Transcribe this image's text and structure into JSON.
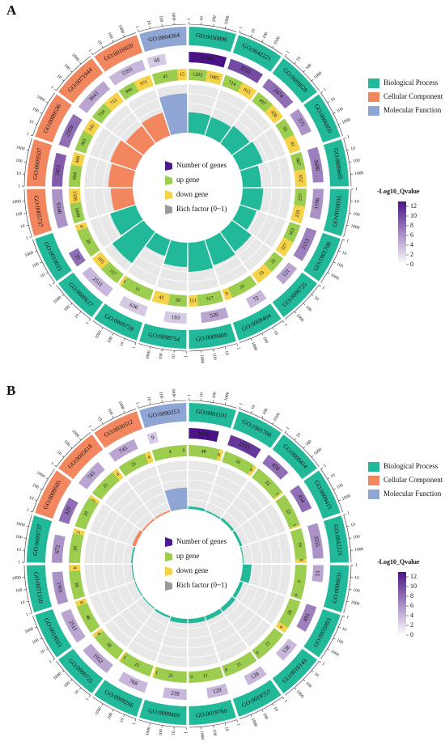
{
  "chart_data": [
    {
      "type": "circos",
      "label": "A",
      "terms": [
        "GO:0050896",
        "GO:0042221",
        "GO:0009628",
        "GO:0006950",
        "GO:0009605",
        "GO:0010035",
        "GO:1901700",
        "GO:0006725",
        "GO:0009404",
        "GO:0009409",
        "GO:0098754",
        "GO:0009759",
        "GO:0009617",
        "GO:0010033",
        "GO:0005737",
        "GO:0009507",
        "GO:0009536",
        "GO:0071944",
        "GO:0016020",
        "GO:0004364"
      ],
      "term_category": [
        "Biological Process",
        "Biological Process",
        "Biological Process",
        "Biological Process",
        "Biological Process",
        "Biological Process",
        "Biological Process",
        "Biological Process",
        "Biological Process",
        "Biological Process",
        "Biological Process",
        "Biological Process",
        "Biological Process",
        "Biological Process",
        "Cellular Component",
        "Cellular Component",
        "Cellular Component",
        "Cellular Component",
        "Cellular Component",
        "Molecular Function"
      ],
      "genes": [
        6344,
        3555,
        2474,
        375,
        3680,
        1196,
        2113,
        121,
        72,
        539,
        193,
        636,
        2511,
        37,
        9346,
        2451,
        2359,
        3843,
        5593,
        69
      ],
      "up": [
        1205,
        714,
        497,
        91,
        667,
        237,
        363,
        33,
        35,
        317,
        50,
        11,
        157,
        20,
        1848,
        694,
        365,
        734,
        986,
        41
      ],
      "down": [
        1085,
        615,
        436,
        81,
        652,
        229,
        327,
        33,
        9,
        111,
        45,
        1,
        105,
        4,
        1328,
        400,
        245,
        712,
        971,
        15
      ],
      "rich_factor": [
        0.42,
        0.4,
        0.45,
        0.5,
        0.38,
        0.42,
        0.36,
        0.5,
        0.55,
        0.6,
        0.5,
        0.35,
        0.8,
        0.55,
        0.45,
        0.5,
        0.55,
        0.45,
        0.5,
        0.81
      ],
      "neg_log10_q": [
        13,
        10,
        8,
        6,
        7,
        6,
        7,
        5,
        4,
        5,
        3,
        3,
        4,
        8,
        6,
        9,
        8,
        5,
        4,
        3
      ],
      "gene_axis": {
        "log": true,
        "lim": [
          1,
          10000
        ],
        "ticks": [
          1,
          10,
          100,
          1000
        ]
      },
      "rich_lim": [
        0,
        1
      ],
      "rich_grid": [
        0.2,
        0.4,
        0.6,
        0.8,
        1
      ],
      "categories": [
        {
          "name": "Biological Process",
          "color": "#22b89a"
        },
        {
          "name": "Cellular Component",
          "color": "#f2875f"
        },
        {
          "name": "Molecular Function",
          "color": "#8fa6d5"
        }
      ],
      "ring_legend": [
        {
          "name": "Number of genes",
          "color": "#4a1d8c"
        },
        {
          "name": "up gene",
          "color": "#9ccd4e"
        },
        {
          "name": "down gene",
          "color": "#f6d24a"
        },
        {
          "name": "Rich factor (0~1)",
          "color": "#9a9a9a"
        }
      ],
      "colorbar": {
        "title": "-Log10_Qvalue",
        "lim": [
          0,
          13
        ],
        "ticks": [
          0,
          2,
          4,
          6,
          8,
          10,
          12
        ],
        "colors": [
          "#ffffff",
          "#4a1486"
        ]
      }
    },
    {
      "type": "circos",
      "label": "B",
      "terms": [
        "GO:0001101",
        "GO:1901700",
        "GO:0009414",
        "GO:0009415",
        "GO:0042221",
        "GO:0006631",
        "GO:0055093",
        "GO:0016143",
        "GO:0019757",
        "GO:0019760",
        "GO:0009409",
        "GO:0009266",
        "GO:0009725",
        "GO:0010033",
        "GO:0071310",
        "GO:0009737",
        "GO:0009505",
        "GO:0005618",
        "GO:0030312",
        "GO:0090353"
      ],
      "term_category": [
        "Biological Process",
        "Biological Process",
        "Biological Process",
        "Biological Process",
        "Biological Process",
        "Biological Process",
        "Biological Process",
        "Biological Process",
        "Biological Process",
        "Biological Process",
        "Biological Process",
        "Biological Process",
        "Biological Process",
        "Biological Process",
        "Biological Process",
        "Biological Process",
        "Cellular Component",
        "Cellular Component",
        "Cellular Component",
        "Molecular Function"
      ],
      "genes": [
        1050,
        2133,
        450,
        454,
        3555,
        51,
        491,
        128,
        128,
        128,
        239,
        768,
        1952,
        2511,
        1991,
        672,
        329,
        743,
        745,
        9
      ],
      "up": [
        48,
        59,
        22,
        22,
        70,
        9,
        28,
        11,
        11,
        11,
        21,
        25,
        38,
        46,
        38,
        20,
        20,
        21,
        21,
        4
      ],
      "down": [
        6,
        6,
        1,
        1,
        8,
        0,
        6,
        0,
        0,
        0,
        1,
        1,
        4,
        8,
        8,
        3,
        2,
        4,
        4,
        0
      ],
      "rich_factor": [
        0.05,
        0.03,
        0.05,
        0.05,
        0.02,
        0.18,
        0.07,
        0.09,
        0.09,
        0.09,
        0.09,
        0.04,
        0.02,
        0.02,
        0.02,
        0.03,
        0.07,
        0.03,
        0.03,
        0.44
      ],
      "neg_log10_q": [
        13,
        11,
        8,
        8,
        6,
        5,
        7,
        4,
        4,
        4,
        4,
        4,
        5,
        5,
        6,
        6,
        8,
        5,
        5,
        3
      ],
      "gene_axis": {
        "log": true,
        "lim": [
          1,
          10000
        ],
        "ticks": [
          1,
          10,
          100,
          1000
        ]
      },
      "rich_lim": [
        0,
        1
      ],
      "rich_grid": [
        0.2,
        0.4,
        0.6,
        0.8,
        1
      ],
      "categories": [
        {
          "name": "Biological Process",
          "color": "#22b89a"
        },
        {
          "name": "Cellular Component",
          "color": "#f2875f"
        },
        {
          "name": "Molecular Function",
          "color": "#8fa6d5"
        }
      ],
      "ring_legend": [
        {
          "name": "Number of genes",
          "color": "#4a1d8c"
        },
        {
          "name": "up gene",
          "color": "#9ccd4e"
        },
        {
          "name": "down gene",
          "color": "#f6d24a"
        },
        {
          "name": "Rich factor (0~1)",
          "color": "#9a9a9a"
        }
      ],
      "colorbar": {
        "title": "-Log10_Qvalue",
        "lim": [
          0,
          13
        ],
        "ticks": [
          0,
          2,
          4,
          6,
          8,
          10,
          12
        ],
        "colors": [
          "#ffffff",
          "#4a1486"
        ]
      }
    }
  ]
}
